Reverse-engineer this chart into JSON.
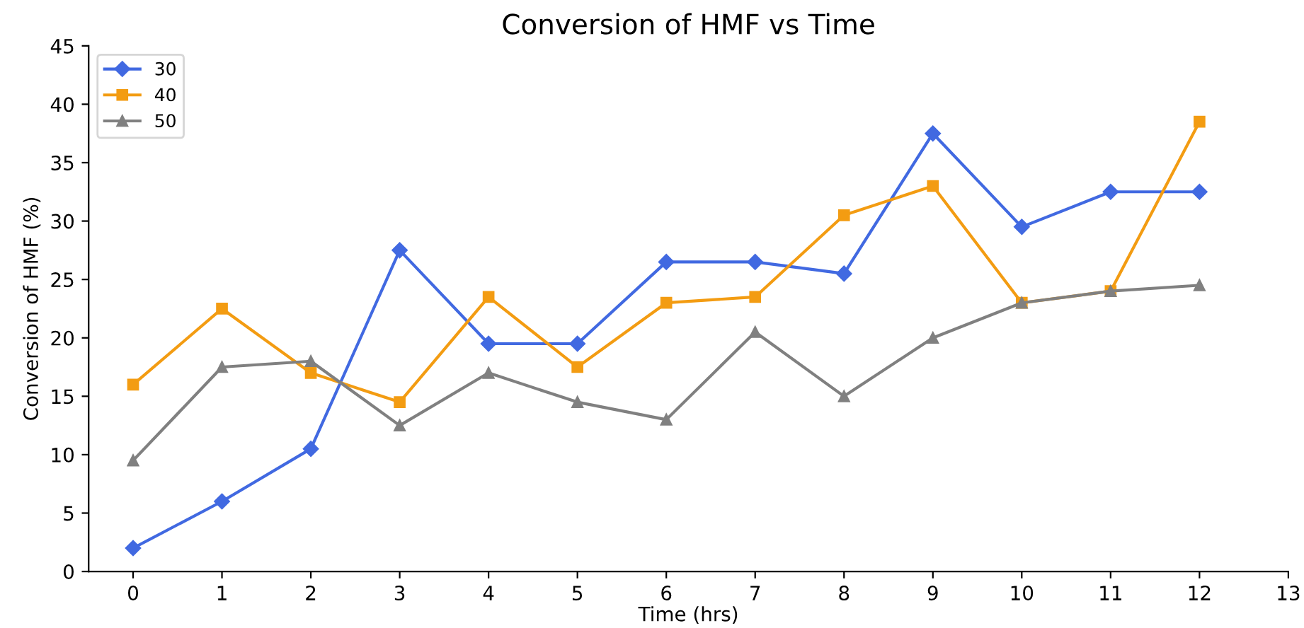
{
  "chart_data": {
    "type": "line",
    "title": "Conversion of HMF vs Time",
    "xlabel": "Time (hrs)",
    "ylabel": "Conversion of HMF (%)",
    "x": [
      0,
      1,
      2,
      3,
      4,
      5,
      6,
      7,
      8,
      9,
      10,
      11,
      12
    ],
    "series": [
      {
        "name": "30",
        "color": "#4169e1",
        "marker": "diamond",
        "values": [
          2,
          6,
          10.5,
          27.5,
          19.5,
          19.5,
          26.5,
          26.5,
          25.5,
          37.5,
          29.5,
          32.5,
          32.5
        ]
      },
      {
        "name": "40",
        "color": "#f39c12",
        "marker": "square",
        "values": [
          16,
          22.5,
          17,
          14.5,
          23.5,
          17.5,
          23,
          23.5,
          30.5,
          33,
          23,
          24,
          38.5
        ]
      },
      {
        "name": "50",
        "color": "#808080",
        "marker": "triangle",
        "values": [
          9.5,
          17.5,
          18,
          12.5,
          17,
          14.5,
          13,
          20.5,
          15,
          20,
          23,
          24,
          24.5
        ]
      }
    ],
    "xlim": [
      -0.5,
      13
    ],
    "xticks": [
      0,
      1,
      2,
      3,
      4,
      5,
      6,
      7,
      8,
      9,
      10,
      11,
      12,
      13
    ],
    "ylim": [
      0,
      45
    ],
    "yticks": [
      0,
      5,
      10,
      15,
      20,
      25,
      30,
      35,
      40,
      45
    ],
    "legend": "top left",
    "grid": false,
    "line_style": "solid"
  }
}
